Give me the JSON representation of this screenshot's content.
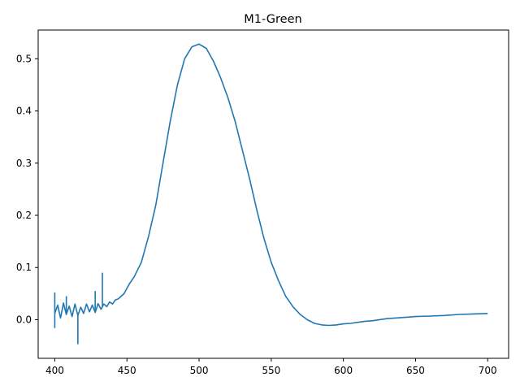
{
  "chart_data": {
    "type": "line",
    "title": "M1-Green",
    "xlabel": "",
    "ylabel": "",
    "xlim": [
      388.5,
      714.5
    ],
    "ylim": [
      -0.074,
      0.555
    ],
    "x_ticks": [
      400,
      450,
      500,
      550,
      600,
      650,
      700
    ],
    "x_tick_labels": [
      "400",
      "450",
      "500",
      "550",
      "600",
      "650",
      "700"
    ],
    "y_ticks": [
      0.0,
      0.1,
      0.2,
      0.3,
      0.4,
      0.5
    ],
    "y_tick_labels": [
      "0.0",
      "0.1",
      "0.2",
      "0.3",
      "0.4",
      "0.5"
    ],
    "grid": false,
    "series": [
      {
        "color": "#1f77b4",
        "x": [
          400,
          402,
          404,
          406,
          408,
          410,
          412,
          414,
          416,
          418,
          420,
          422,
          424,
          426,
          428,
          430,
          432,
          434,
          436,
          438,
          440,
          442,
          444,
          446,
          448,
          450,
          452,
          455,
          460,
          465,
          470,
          475,
          480,
          485,
          490,
          495,
          500,
          505,
          510,
          515,
          520,
          525,
          530,
          535,
          540,
          545,
          550,
          555,
          560,
          565,
          570,
          575,
          580,
          585,
          590,
          595,
          600,
          605,
          610,
          615,
          620,
          630,
          640,
          650,
          660,
          670,
          680,
          690,
          700
        ],
        "y": [
          0.012,
          0.028,
          0.003,
          0.032,
          0.01,
          0.026,
          0.006,
          0.03,
          0.008,
          0.024,
          0.012,
          0.03,
          0.015,
          0.028,
          0.014,
          0.031,
          0.02,
          0.03,
          0.025,
          0.034,
          0.03,
          0.038,
          0.04,
          0.045,
          0.05,
          0.06,
          0.07,
          0.082,
          0.11,
          0.16,
          0.22,
          0.3,
          0.38,
          0.45,
          0.5,
          0.523,
          0.528,
          0.52,
          0.495,
          0.463,
          0.425,
          0.38,
          0.325,
          0.27,
          0.21,
          0.155,
          0.11,
          0.075,
          0.045,
          0.025,
          0.01,
          0.0,
          -0.007,
          -0.01,
          -0.011,
          -0.01,
          -0.008,
          -0.007,
          -0.005,
          -0.003,
          -0.002,
          0.002,
          0.004,
          0.006,
          0.007,
          0.008,
          0.01,
          0.011,
          0.012
        ]
      }
    ],
    "annotations": [
      {
        "x": 416,
        "y": -0.047
      },
      {
        "x": 433,
        "y": 0.09
      },
      {
        "x": 400,
        "y": 0.052
      },
      {
        "x": 400,
        "y": -0.016
      },
      {
        "x": 428,
        "y": 0.055
      },
      {
        "x": 408,
        "y": 0.045
      }
    ]
  }
}
